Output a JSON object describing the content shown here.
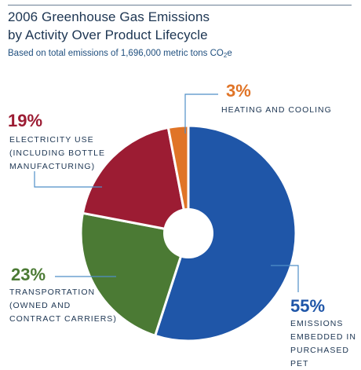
{
  "title_lines": [
    "2006 Greenhouse Gas Emissions",
    "by Activity Over Product Lifecycle"
  ],
  "subtitle_prefix": "Based on total emissions of 1,696,000 metric tons CO",
  "subtitle_subscript": "2",
  "subtitle_suffix": "e",
  "chart_data": {
    "type": "pie",
    "donut": true,
    "title": "2006 Greenhouse Gas Emissions by Activity Over Product Lifecycle",
    "total": "1,696,000 metric tons CO2e",
    "slices": [
      {
        "label_lines": [
          "EMISSIONS",
          "EMBEDDED IN",
          "PURCHASED",
          "PET"
        ],
        "value": 55,
        "pct_label": "55%",
        "color": "#1f56a8"
      },
      {
        "label_lines": [
          "TRANSPORTATION",
          "(OWNED AND",
          "CONTRACT CARRIERS)"
        ],
        "value": 23,
        "pct_label": "23%",
        "color": "#4b7a34"
      },
      {
        "label_lines": [
          "ELECTRICITY USE",
          "(INCLUDING BOTTLE",
          "MANUFACTURING)"
        ],
        "value": 19,
        "pct_label": "19%",
        "color": "#9c1c33"
      },
      {
        "label_lines": [
          "HEATING AND COOLING"
        ],
        "value": 3,
        "pct_label": "3%",
        "color": "#e07427"
      }
    ],
    "legend": "callout labels"
  },
  "colors": {
    "title": "#1c3552",
    "subtitle": "#1f4f7f",
    "leader_line": "#4f8fc8",
    "rule": "#6b7f95"
  }
}
